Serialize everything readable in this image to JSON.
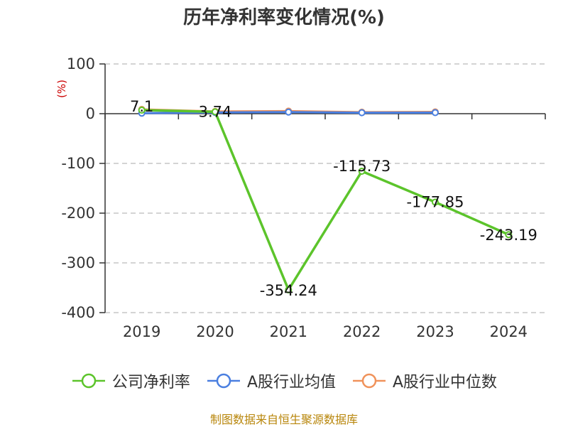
{
  "chart_data": {
    "type": "line",
    "title": "历年净利率变化情况(%)",
    "unit_label": "(%)",
    "categories": [
      "2019",
      "2020",
      "2021",
      "2022",
      "2023",
      "2024"
    ],
    "ylim": [
      -400,
      100
    ],
    "yticks": [
      100,
      0,
      -100,
      -200,
      -300,
      -400
    ],
    "grid": true,
    "legend_position": "bottom",
    "series": [
      {
        "name": "公司净利率",
        "color": "#5cc42b",
        "values": [
          7.1,
          3.74,
          -354.24,
          -115.73,
          -177.85,
          -243.19
        ],
        "labels": [
          "7.1",
          "3.74",
          "-354.24",
          "-115.73",
          "-177.85",
          "-243.19"
        ]
      },
      {
        "name": "A股行业均值",
        "color": "#4a7fe0",
        "values": [
          1.0,
          2.5,
          3.2,
          2.0,
          2.2,
          null
        ],
        "labels": []
      },
      {
        "name": "A股行业中位数",
        "color": "#f0925a",
        "values": [
          8.5,
          4.5,
          5.2,
          3.0,
          3.6,
          null
        ],
        "labels": []
      }
    ]
  },
  "source": "制图数据来自恒生聚源数据库"
}
